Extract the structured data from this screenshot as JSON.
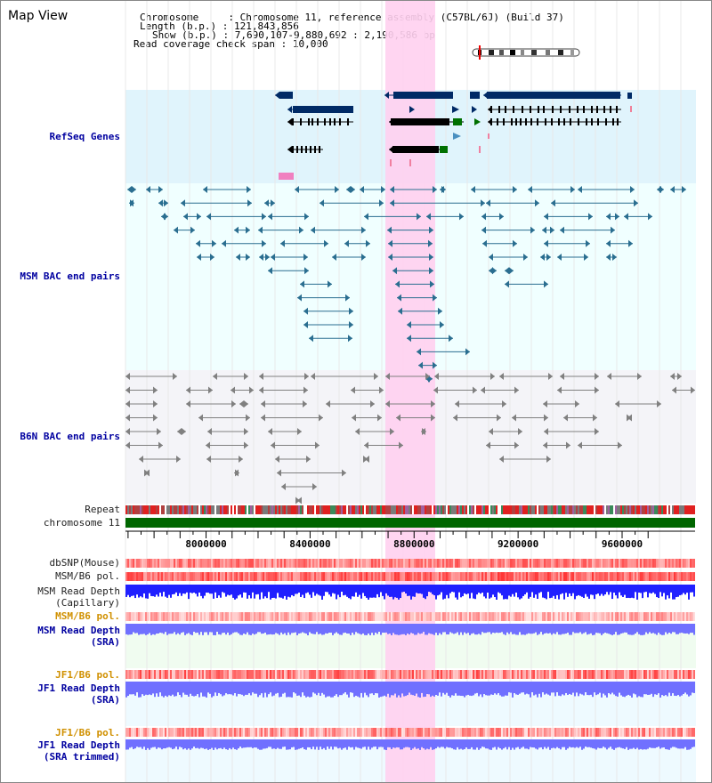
{
  "view": {
    "title": "Map View"
  },
  "info": {
    "chromosome_label": "Chromosome",
    "chromosome_value": "Chromosome 11, reference assembly (C57BL/6J) (Build 37)",
    "length_label": "Length (b.p.)",
    "length_value": "121,843,856",
    "show_label": "Show (b.p.)",
    "show_value": "7,690,107-9,880,692 : 2,190,586 bp",
    "coverage_label": "Read coverage check span",
    "coverage_value": "10,000"
  },
  "tracks": {
    "refseq": "RefSeq Genes",
    "msm_bac": "MSM BAC end pairs",
    "b6n_bac": "B6N BAC end pairs",
    "repeat": "Repeat",
    "chromosome": "chromosome 11",
    "dbsnp": "dbSNP(Mouse)",
    "msm_b6_pol_1": "MSM/B6 pol.",
    "msm_depth_cap_1": "MSM Read Depth",
    "msm_depth_cap_2": "(Capillary)",
    "msm_b6_pol_2": "MSM/B6 pol.",
    "msm_depth_sra_1": "MSM Read Depth",
    "msm_depth_sra_2": "(SRA)",
    "jf1_b6_pol_1": "JF1/B6 pol.",
    "jf1_depth_sra_1": "JF1 Read Depth",
    "jf1_depth_sra_2": "(SRA)",
    "jf1_b6_pol_2": "JF1/B6 pol.",
    "jf1_depth_trim_1": "JF1 Read Depth",
    "jf1_depth_trim_2": "(SRA trimmed)"
  },
  "axis": {
    "ticks": [
      "8000000",
      "8400000",
      "8800000",
      "9200000",
      "9600000"
    ],
    "tick_values": [
      8000000,
      8400000,
      8800000,
      9200000,
      9600000
    ],
    "start": 7690107,
    "end": 9880692
  },
  "colors": {
    "refseq_bg": "#e0f4fc",
    "msm_bg": "#f0ffff",
    "b6n_bg": "#f4f4f8",
    "highlight": "#ffd0f0",
    "gene": "#002a66",
    "bac_msm": "#2a6e90",
    "bac_b6n": "#808080",
    "chromosome": "#006600",
    "depth_capillary": "#2020ff",
    "depth_sra": "#7070ff"
  }
}
